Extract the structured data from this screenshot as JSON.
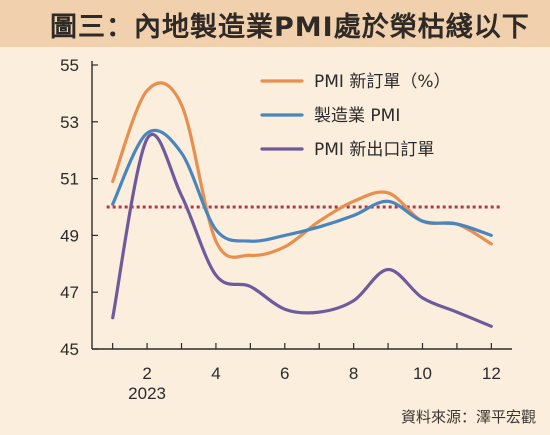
{
  "title": "圖三：內地製造業PMI處於榮枯綫以下",
  "source": "資料來源：澤平宏觀",
  "colors": {
    "background": "#fbeedd",
    "title_bar": "#f1d0ae",
    "reference_line": "#b0374a"
  },
  "chart_data": {
    "type": "line",
    "title": "圖三：內地製造業PMI處於榮枯綫以下",
    "xlabel": "",
    "ylabel": "",
    "x": [
      1,
      2,
      3,
      4,
      5,
      6,
      7,
      8,
      9,
      10,
      11,
      12
    ],
    "xlim": [
      0.4,
      12.6
    ],
    "ylim": [
      45,
      55
    ],
    "x_ticks": [
      2,
      4,
      6,
      8,
      10,
      12
    ],
    "x_tick_labels": [
      "2",
      "4",
      "6",
      "8",
      "10",
      "12"
    ],
    "x_sublabel": {
      "x": 2,
      "label": "2023"
    },
    "y_ticks": [
      45,
      47,
      49,
      51,
      53,
      55
    ],
    "y_tick_labels": [
      "45",
      "47",
      "49",
      "51",
      "53",
      "55"
    ],
    "grid": false,
    "legend_position": "top-right",
    "reference_line": {
      "y": 50,
      "style": "dotted"
    },
    "series": [
      {
        "name": "PMI 新訂單（%）",
        "color": "#e88f4f",
        "values": [
          50.9,
          54.1,
          53.6,
          48.8,
          48.3,
          48.6,
          49.5,
          50.2,
          50.5,
          49.5,
          49.4,
          48.7
        ]
      },
      {
        "name": "製造業 PMI",
        "color": "#4a86bd",
        "values": [
          50.1,
          52.6,
          51.9,
          49.2,
          48.8,
          49.0,
          49.3,
          49.7,
          50.2,
          49.5,
          49.4,
          49.0
        ]
      },
      {
        "name": "PMI 新出口訂單",
        "color": "#6e5a9c",
        "values": [
          46.1,
          52.4,
          50.4,
          47.6,
          47.2,
          46.4,
          46.3,
          46.7,
          47.8,
          46.8,
          46.3,
          45.8
        ]
      }
    ]
  }
}
